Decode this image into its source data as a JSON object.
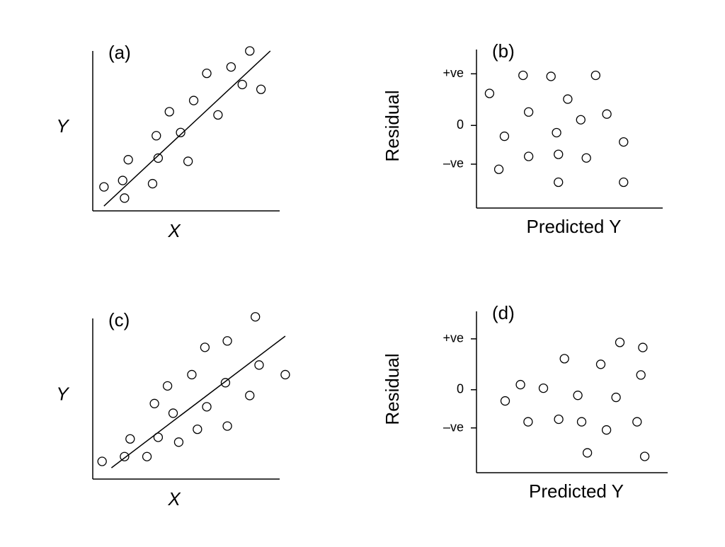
{
  "chart_data": [
    {
      "type": "scatter",
      "title": "(a)",
      "xlabel": "X",
      "ylabel": "Y",
      "xlim": [
        0,
        100
      ],
      "ylim": [
        0,
        100
      ],
      "x": [
        6,
        16,
        17,
        19,
        32,
        34,
        35,
        41,
        47,
        51,
        54,
        61,
        67,
        74,
        80,
        84,
        90
      ],
      "values": [
        15,
        19,
        8,
        32,
        17,
        47,
        33,
        62,
        49,
        31,
        69,
        86,
        60,
        90,
        79,
        100,
        76
      ],
      "fit_line": {
        "x": [
          6,
          95
        ],
        "y": [
          3,
          100
        ]
      }
    },
    {
      "type": "scatter",
      "title": "(b)",
      "xlabel": "Predicted Y",
      "ylabel": "Residual",
      "xlim": [
        0,
        100
      ],
      "ylim": [
        -1.6,
        1.47
      ],
      "yticks": [
        {
          "value": 1,
          "label": "+ve"
        },
        0,
        {
          "value": -0.75,
          "label": "–ve"
        }
      ],
      "x": [
        7,
        25,
        40,
        64,
        49,
        28,
        70,
        15,
        43,
        56,
        79,
        12,
        28,
        44,
        59,
        44,
        79
      ],
      "values": [
        0.62,
        0.97,
        0.95,
        0.97,
        0.51,
        0.26,
        0.22,
        -0.21,
        -0.14,
        0.11,
        -0.32,
        -0.85,
        -0.6,
        -0.56,
        -0.63,
        -1.1,
        -1.1
      ]
    },
    {
      "type": "scatter",
      "title": "(c)",
      "xlabel": "X",
      "ylabel": "Y",
      "xlim": [
        0,
        100
      ],
      "ylim": [
        0,
        100
      ],
      "x": [
        5,
        17,
        20,
        29,
        33,
        35,
        40,
        43,
        46,
        53,
        56,
        60,
        61,
        71,
        72,
        72,
        84,
        87,
        89,
        103
      ],
      "values": [
        11,
        14,
        25,
        14,
        47,
        26,
        58,
        41,
        23,
        65,
        31,
        82,
        45,
        60,
        86,
        33,
        52,
        101,
        71,
        65
      ],
      "fit_line": {
        "x": [
          10,
          103
        ],
        "y": [
          7,
          89
        ]
      }
    },
    {
      "type": "scatter",
      "title": "(d)",
      "xlabel": "Predicted Y",
      "ylabel": "Residual",
      "xlim": [
        0,
        100
      ],
      "ylim": [
        -1.63,
        1.54
      ],
      "yticks": [
        {
          "value": 1,
          "label": "+ve"
        },
        0,
        {
          "value": -0.75,
          "label": "–ve"
        }
      ],
      "x": [
        15,
        23,
        27,
        35,
        43,
        46,
        53,
        55,
        58,
        65,
        68,
        73,
        75,
        84,
        86,
        87,
        88
      ],
      "values": [
        -0.22,
        0.1,
        -0.63,
        0.03,
        -0.58,
        0.61,
        -0.11,
        -0.63,
        -1.24,
        0.5,
        -0.79,
        -0.15,
        0.93,
        -0.63,
        0.29,
        0.83,
        -1.31
      ]
    }
  ]
}
